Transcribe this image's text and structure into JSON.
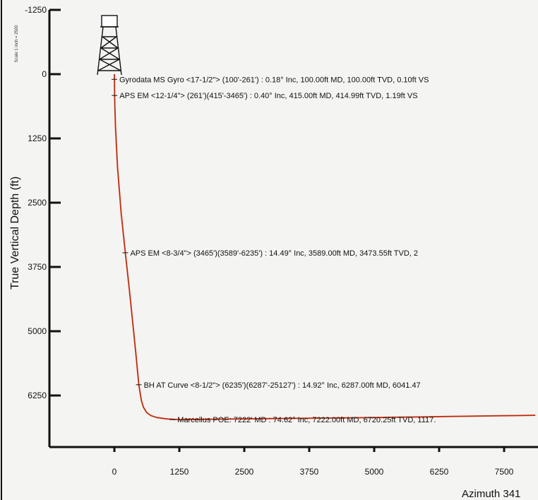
{
  "chart_data": {
    "type": "line",
    "title": "",
    "ylabel": "True Vertical Depth (ft)",
    "xlabel": "",
    "scale_note": "Scale 1 inch = 2500",
    "footer_text": "Azimuth 341",
    "colors": {
      "wellpath": "#e8401c",
      "axis": "#111111"
    },
    "x_ticks": [
      "0",
      "1250",
      "2500",
      "3750",
      "5000",
      "6250",
      "7500"
    ],
    "x_tick_values": [
      0,
      1250,
      2500,
      3750,
      5000,
      6250,
      7500
    ],
    "y_ticks": [
      "-1250",
      "0",
      "1250",
      "2500",
      "3750",
      "5000",
      "6250"
    ],
    "y_tick_values": [
      -1250,
      0,
      1250,
      2500,
      3750,
      5000,
      6250
    ],
    "xlim": [
      -1100,
      8100
    ],
    "ylim": [
      -1250,
      7500
    ],
    "y_inverted": true,
    "series": [
      {
        "x": [
          0,
          1,
          4,
          20,
          60,
          130,
          210,
          290,
          360,
          420,
          470,
          520,
          560,
          620,
          700,
          820,
          1000,
          1250,
          2000,
          3000,
          4000,
          5000,
          6000,
          7000,
          7800,
          8100
        ],
        "y": [
          0,
          100,
          415,
          1000,
          1800,
          2700,
          3474,
          4200,
          4900,
          5500,
          6041,
          6350,
          6480,
          6580,
          6640,
          6680,
          6705,
          6720,
          6710,
          6700,
          6690,
          6680,
          6665,
          6650,
          6640,
          6635
        ]
      }
    ],
    "annotations": [
      {
        "text": "Gyrodata MS Gyro <17-1/2\"> (100'-261') : 0.18° Inc, 100.00ft MD, 100.00ft TVD, 0.10ft VS",
        "x": 0,
        "y": 100
      },
      {
        "text": "APS EM <12-1/4\"> (261')(415'-3465') : 0.40° Inc, 415.00ft MD, 414.99ft TVD, 1.19ft VS",
        "x": 4,
        "y": 415
      },
      {
        "text": "APS EM <8-3/4\"> (3465')(3589'-6235') : 14.49° Inc, 3589.00ft MD, 3473.55ft TVD, 2",
        "x": 210,
        "y": 3474
      },
      {
        "text": "BH AT Curve <8-1/2\"> (6235')(6287'-25127') : 14.92° Inc, 6287.00ft MD, 6041.47",
        "x": 470,
        "y": 6041
      },
      {
        "text": "Marcellus POE: 7222' MD : 74.62° Inc, 7222.00ft MD, 6720.25ft TVD, 1117.",
        "x": 1118,
        "y": 6720
      }
    ]
  }
}
